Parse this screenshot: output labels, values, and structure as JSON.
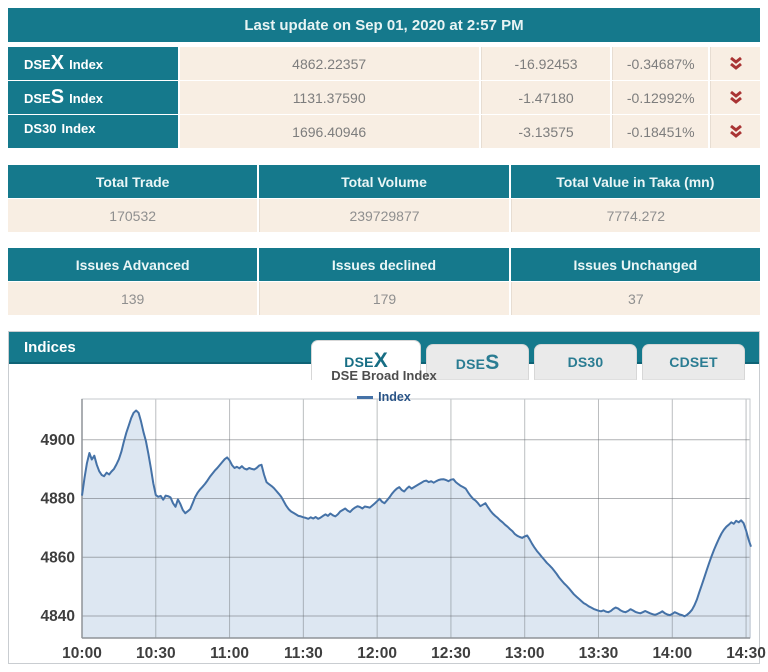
{
  "update_bar": {
    "text": "Last update on Sep 01, 2020 at 2:57 PM"
  },
  "index_table": {
    "rows": [
      {
        "prefix": "DSE",
        "big": "X",
        "suffix": "Index",
        "value": "4862.22357",
        "change": "-16.92453",
        "change_pct": "-0.34687%",
        "direction": "down"
      },
      {
        "prefix": "DSE",
        "big": "S",
        "suffix": "Index",
        "value": "1131.37590",
        "change": "-1.47180",
        "change_pct": "-0.12992%",
        "direction": "down"
      },
      {
        "prefix": "DS30",
        "big": "",
        "suffix": "Index",
        "value": "1696.40946",
        "change": "-3.13575",
        "change_pct": "-0.18451%",
        "direction": "down"
      }
    ],
    "icon_color": "#a93434"
  },
  "totals_table": {
    "headers": [
      "Total Trade",
      "Total Volume",
      "Total Value in Taka (mn)"
    ],
    "values": [
      "170532",
      "239729877",
      "7774.272"
    ]
  },
  "issues_table": {
    "headers": [
      "Issues Advanced",
      "Issues declined",
      "Issues Unchanged"
    ],
    "values": [
      "139",
      "179",
      "37"
    ]
  },
  "indices_panel": {
    "title": "Indices",
    "tabs": [
      {
        "prefix": "DSE",
        "big": "X",
        "active": true
      },
      {
        "prefix": "DSE",
        "big": "S",
        "active": false
      },
      {
        "prefix": "DS30",
        "big": "",
        "active": false
      },
      {
        "prefix": "CDSET",
        "big": "",
        "active": false
      }
    ],
    "chart_title": "DSE Broad Index",
    "legend": "Index"
  },
  "chart_data": {
    "type": "area",
    "title": "DSE Broad Index",
    "xlabel": "",
    "ylabel": "",
    "x_ticks": [
      "10:00",
      "10:30",
      "11:00",
      "11:30",
      "12:00",
      "12:30",
      "13:00",
      "13:30",
      "14:00",
      "14:30"
    ],
    "x_tick_minutes": [
      0,
      30,
      60,
      90,
      120,
      150,
      180,
      210,
      240,
      270
    ],
    "x_domain_minutes": [
      0,
      271.6
    ],
    "ylim": [
      4832.5,
      4913.9
    ],
    "y_ticks": [
      4840,
      4860,
      4880,
      4900
    ],
    "grid": true,
    "legend_position": "top-center",
    "line_color": "#4572a7",
    "fill_color": "#dde7f2",
    "series": [
      {
        "name": "Index",
        "points": [
          [
            0,
            4881
          ],
          [
            1,
            4887
          ],
          [
            2,
            4892
          ],
          [
            3,
            4895.5
          ],
          [
            4,
            4893.3
          ],
          [
            5,
            4894.6
          ],
          [
            6,
            4891.5
          ],
          [
            7,
            4889.3
          ],
          [
            8,
            4888
          ],
          [
            9,
            4887.6
          ],
          [
            10,
            4888.8
          ],
          [
            11,
            4888.2
          ],
          [
            12,
            4889.2
          ],
          [
            13,
            4890.1
          ],
          [
            14,
            4891.6
          ],
          [
            15,
            4893.4
          ],
          [
            16,
            4896
          ],
          [
            17,
            4899.3
          ],
          [
            18,
            4902.4
          ],
          [
            19,
            4904.8
          ],
          [
            20,
            4907.4
          ],
          [
            21,
            4909.2
          ],
          [
            22,
            4910
          ],
          [
            23,
            4909.2
          ],
          [
            24,
            4906.3
          ],
          [
            25,
            4902.6
          ],
          [
            26,
            4899.6
          ],
          [
            27,
            4895.2
          ],
          [
            28,
            4890.3
          ],
          [
            29,
            4885.2
          ],
          [
            30,
            4881.2
          ],
          [
            31,
            4880.6
          ],
          [
            32,
            4880.9
          ],
          [
            33,
            4879.6
          ],
          [
            34,
            4881
          ],
          [
            35,
            4880.8
          ],
          [
            36,
            4880.4
          ],
          [
            37,
            4878.4
          ],
          [
            38,
            4877.2
          ],
          [
            39,
            4879.7
          ],
          [
            40,
            4878.1
          ],
          [
            41,
            4876.1
          ],
          [
            42,
            4875
          ],
          [
            43,
            4875.7
          ],
          [
            44,
            4876.4
          ],
          [
            45,
            4878.4
          ],
          [
            46,
            4880.5
          ],
          [
            47,
            4882
          ],
          [
            48,
            4883.1
          ],
          [
            49,
            4884
          ],
          [
            50,
            4885
          ],
          [
            51,
            4886.1
          ],
          [
            52,
            4887.4
          ],
          [
            53,
            4888.5
          ],
          [
            54,
            4889.5
          ],
          [
            55,
            4890.4
          ],
          [
            56,
            4891.4
          ],
          [
            57,
            4892.4
          ],
          [
            58,
            4893.4
          ],
          [
            59,
            4894
          ],
          [
            60,
            4893
          ],
          [
            61,
            4891.4
          ],
          [
            62,
            4890.4
          ],
          [
            63,
            4890.8
          ],
          [
            64,
            4890.3
          ],
          [
            65,
            4891
          ],
          [
            66,
            4890.2
          ],
          [
            67,
            4889.9
          ],
          [
            68,
            4890.4
          ],
          [
            69,
            4890.1
          ],
          [
            70,
            4889.9
          ],
          [
            71,
            4890.4
          ],
          [
            72,
            4891.2
          ],
          [
            73,
            4891.5
          ],
          [
            74,
            4888.2
          ],
          [
            75,
            4885.6
          ],
          [
            76,
            4884.9
          ],
          [
            77,
            4884.3
          ],
          [
            78,
            4883.6
          ],
          [
            79,
            4882.6
          ],
          [
            80,
            4881.6
          ],
          [
            81,
            4880.6
          ],
          [
            82,
            4879.1
          ],
          [
            83,
            4877.6
          ],
          [
            84,
            4876.4
          ],
          [
            85,
            4875.6
          ],
          [
            86,
            4875.1
          ],
          [
            87,
            4874.6
          ],
          [
            88,
            4874.1
          ],
          [
            89,
            4873.9
          ],
          [
            90,
            4873.6
          ],
          [
            91,
            4873.4
          ],
          [
            92,
            4873.1
          ],
          [
            93,
            4873.6
          ],
          [
            94,
            4873.2
          ],
          [
            95,
            4873.7
          ],
          [
            96,
            4873.1
          ],
          [
            97,
            4873.5
          ],
          [
            98,
            4874.1
          ],
          [
            99,
            4874.6
          ],
          [
            100,
            4874.1
          ],
          [
            101,
            4874.9
          ],
          [
            102,
            4874.3
          ],
          [
            103,
            4873.9
          ],
          [
            104,
            4874.6
          ],
          [
            105,
            4875.6
          ],
          [
            106,
            4876.1
          ],
          [
            107,
            4876.6
          ],
          [
            108,
            4875.9
          ],
          [
            109,
            4875.4
          ],
          [
            110,
            4876.3
          ],
          [
            111,
            4876.9
          ],
          [
            112,
            4877.4
          ],
          [
            113,
            4877.1
          ],
          [
            114,
            4876.6
          ],
          [
            115,
            4877.3
          ],
          [
            116,
            4877.1
          ],
          [
            117,
            4876.9
          ],
          [
            118,
            4877.6
          ],
          [
            119,
            4878.3
          ],
          [
            120,
            4879.1
          ],
          [
            121,
            4879.9
          ],
          [
            122,
            4878.9
          ],
          [
            123,
            4878.4
          ],
          [
            124,
            4879.4
          ],
          [
            125,
            4880.4
          ],
          [
            126,
            4881.6
          ],
          [
            127,
            4882.6
          ],
          [
            128,
            4883.4
          ],
          [
            129,
            4883.9
          ],
          [
            130,
            4882.9
          ],
          [
            131,
            4882.4
          ],
          [
            132,
            4883.4
          ],
          [
            133,
            4884.1
          ],
          [
            134,
            4883.4
          ],
          [
            135,
            4883.9
          ],
          [
            136,
            4884.4
          ],
          [
            137,
            4884.9
          ],
          [
            138,
            4885.4
          ],
          [
            139,
            4885.9
          ],
          [
            140,
            4886.1
          ],
          [
            141,
            4885.6
          ],
          [
            142,
            4885.9
          ],
          [
            143,
            4885.4
          ],
          [
            144,
            4885.9
          ],
          [
            145,
            4886.3
          ],
          [
            146,
            4886.5
          ],
          [
            147,
            4886.6
          ],
          [
            148,
            4886.3
          ],
          [
            149,
            4885.9
          ],
          [
            150,
            4886.4
          ],
          [
            151,
            4886.6
          ],
          [
            152,
            4885.6
          ],
          [
            153,
            4884.9
          ],
          [
            154,
            4884.3
          ],
          [
            155,
            4883.9
          ],
          [
            156,
            4883.4
          ],
          [
            157,
            4882.1
          ],
          [
            158,
            4880.9
          ],
          [
            159,
            4879.9
          ],
          [
            160,
            4879.3
          ],
          [
            161,
            4878.4
          ],
          [
            162,
            4877.4
          ],
          [
            163,
            4877.9
          ],
          [
            164,
            4878.4
          ],
          [
            165,
            4877.1
          ],
          [
            166,
            4875.9
          ],
          [
            167,
            4874.9
          ],
          [
            168,
            4874.1
          ],
          [
            169,
            4873.4
          ],
          [
            170,
            4872.6
          ],
          [
            171,
            4871.9
          ],
          [
            172,
            4871.1
          ],
          [
            173,
            4870.4
          ],
          [
            174,
            4869.6
          ],
          [
            175,
            4868.9
          ],
          [
            176,
            4867.9
          ],
          [
            177,
            4867.3
          ],
          [
            178,
            4866.9
          ],
          [
            179,
            4866.6
          ],
          [
            180,
            4867.1
          ],
          [
            181,
            4867.4
          ],
          [
            182,
            4866.1
          ],
          [
            183,
            4864.6
          ],
          [
            184,
            4863.3
          ],
          [
            185,
            4862.1
          ],
          [
            186,
            4861.1
          ],
          [
            187,
            4860.1
          ],
          [
            188,
            4859.1
          ],
          [
            189,
            4858.1
          ],
          [
            190,
            4857.3
          ],
          [
            191,
            4856.4
          ],
          [
            192,
            4855.4
          ],
          [
            193,
            4854.3
          ],
          [
            194,
            4853.1
          ],
          [
            195,
            4852.1
          ],
          [
            196,
            4851.1
          ],
          [
            197,
            4850.3
          ],
          [
            198,
            4849.4
          ],
          [
            199,
            4848.4
          ],
          [
            200,
            4847.4
          ],
          [
            201,
            4846.6
          ],
          [
            202,
            4845.9
          ],
          [
            203,
            4845.1
          ],
          [
            204,
            4844.4
          ],
          [
            205,
            4843.9
          ],
          [
            206,
            4843.3
          ],
          [
            207,
            4842.9
          ],
          [
            208,
            4842.4
          ],
          [
            209,
            4842.1
          ],
          [
            210,
            4841.8
          ],
          [
            211,
            4841.6
          ],
          [
            212,
            4841.9
          ],
          [
            213,
            4841.5
          ],
          [
            214,
            4841.3
          ],
          [
            215,
            4841.7
          ],
          [
            216,
            4842.4
          ],
          [
            217,
            4842.9
          ],
          [
            218,
            4842.5
          ],
          [
            219,
            4841.9
          ],
          [
            220,
            4841.5
          ],
          [
            221,
            4841.3
          ],
          [
            222,
            4841.7
          ],
          [
            223,
            4842.3
          ],
          [
            224,
            4841.9
          ],
          [
            225,
            4841.4
          ],
          [
            226,
            4841.1
          ],
          [
            227,
            4840.9
          ],
          [
            228,
            4841.3
          ],
          [
            229,
            4841.7
          ],
          [
            230,
            4841.3
          ],
          [
            231,
            4840.9
          ],
          [
            232,
            4840.6
          ],
          [
            233,
            4840.4
          ],
          [
            234,
            4840.7
          ],
          [
            235,
            4841.1
          ],
          [
            236,
            4841.6
          ],
          [
            237,
            4840.9
          ],
          [
            238,
            4840.5
          ],
          [
            239,
            4840.3
          ],
          [
            240,
            4840.7
          ],
          [
            241,
            4841.3
          ],
          [
            242,
            4840.9
          ],
          [
            243,
            4840.5
          ],
          [
            244,
            4840.3
          ],
          [
            245,
            4839.9
          ],
          [
            246,
            4840.4
          ],
          [
            247,
            4841.1
          ],
          [
            248,
            4842.1
          ],
          [
            249,
            4843.6
          ],
          [
            250,
            4845.6
          ],
          [
            251,
            4848.1
          ],
          [
            252,
            4850.6
          ],
          [
            253,
            4853.1
          ],
          [
            254,
            4855.6
          ],
          [
            255,
            4858.1
          ],
          [
            256,
            4860.4
          ],
          [
            257,
            4862.6
          ],
          [
            258,
            4864.6
          ],
          [
            259,
            4866.4
          ],
          [
            260,
            4868.1
          ],
          [
            261,
            4869.4
          ],
          [
            262,
            4870.4
          ],
          [
            263,
            4871.1
          ],
          [
            264,
            4871.9
          ],
          [
            265,
            4871.4
          ],
          [
            266,
            4872.4
          ],
          [
            267,
            4871.9
          ],
          [
            268,
            4872.6
          ],
          [
            269,
            4871.6
          ],
          [
            270,
            4869.1
          ],
          [
            271,
            4866.1
          ],
          [
            272,
            4863.6
          ]
        ]
      }
    ]
  }
}
